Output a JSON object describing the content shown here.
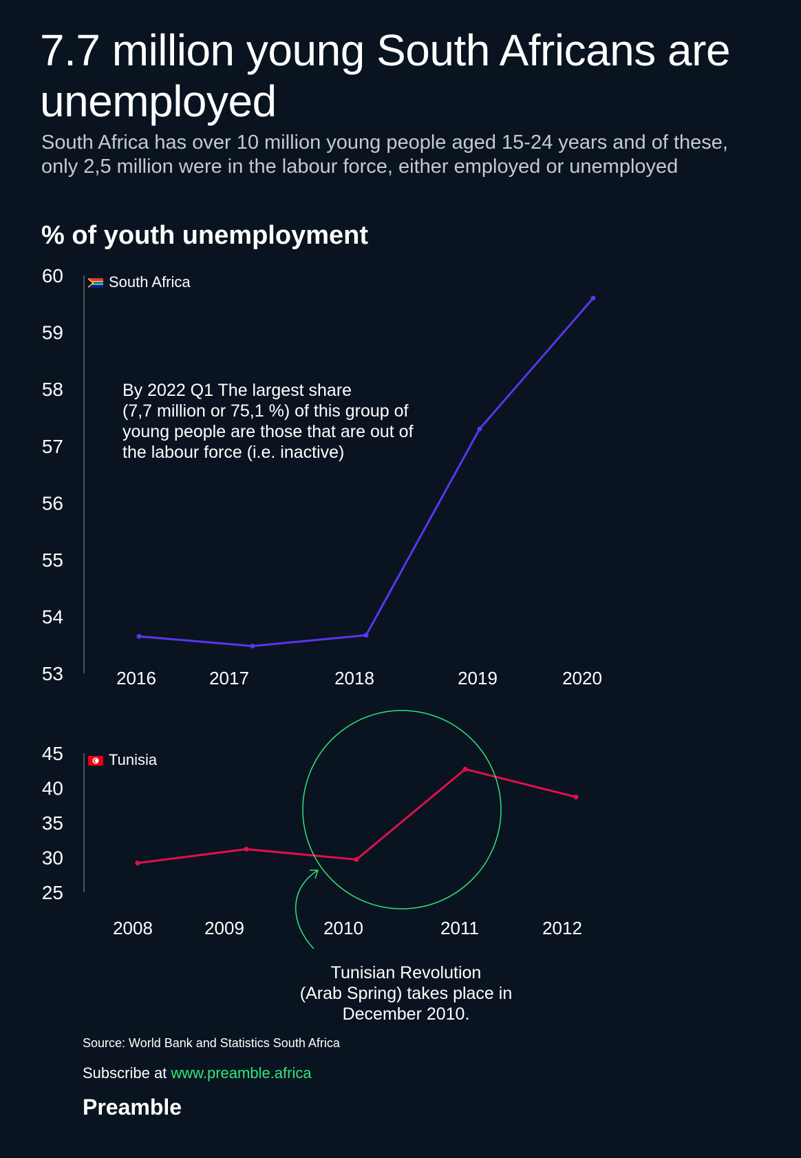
{
  "header": {
    "title": "7.7 million young South Africans are unemployed",
    "subtitle": "South Africa has over 10 million young people aged 15-24 years and of these, only 2,5 million were in the labour force, either employed or unemployed"
  },
  "section_title": "% of youth unemployment",
  "annotation": "By 2022 Q1 The largest share\n (7,7 million or 75,1 %) of this group of\nyoung people are those that are out of\nthe labour force (i.e. inactive)",
  "revolution_note": "Tunisian Revolution\n(Arab Spring) takes place in\nDecember 2010.",
  "footer": {
    "source": "Source: World Bank and Statistics South Africa",
    "subscribe_prefix": "Subscribe at ",
    "subscribe_link": "www.preamble.africa",
    "brand": "Preamble"
  },
  "colors": {
    "background": "#0a1420",
    "south_africa_line": "#5b35f0",
    "tunisia_line": "#e0104a",
    "highlight": "#2ee67a"
  },
  "chart_data": [
    {
      "type": "line",
      "ylabel": "% of youth unemployment",
      "x": [
        "2016",
        "2017",
        "2018",
        "2019",
        "2020"
      ],
      "series": [
        {
          "name": "South Africa",
          "values": [
            53.65,
            53.48,
            53.67,
            57.3,
            59.6
          ]
        }
      ],
      "ylim": [
        53,
        60
      ],
      "yticks": [
        53,
        54,
        55,
        56,
        57,
        58,
        59,
        60
      ],
      "grid": false,
      "legend": "top-left",
      "flag_icon": "south-africa-flag-icon"
    },
    {
      "type": "line",
      "x": [
        "2008",
        "2009",
        "2010",
        "2011",
        "2012"
      ],
      "series": [
        {
          "name": "Tunisia",
          "values": [
            29.2,
            31.2,
            29.7,
            42.7,
            38.7
          ]
        }
      ],
      "ylim": [
        25,
        45
      ],
      "yticks": [
        25,
        30,
        35,
        40,
        45
      ],
      "grid": false,
      "legend": "top-left",
      "flag_icon": "tunisia-flag-icon",
      "highlight": "2010–2011"
    }
  ]
}
